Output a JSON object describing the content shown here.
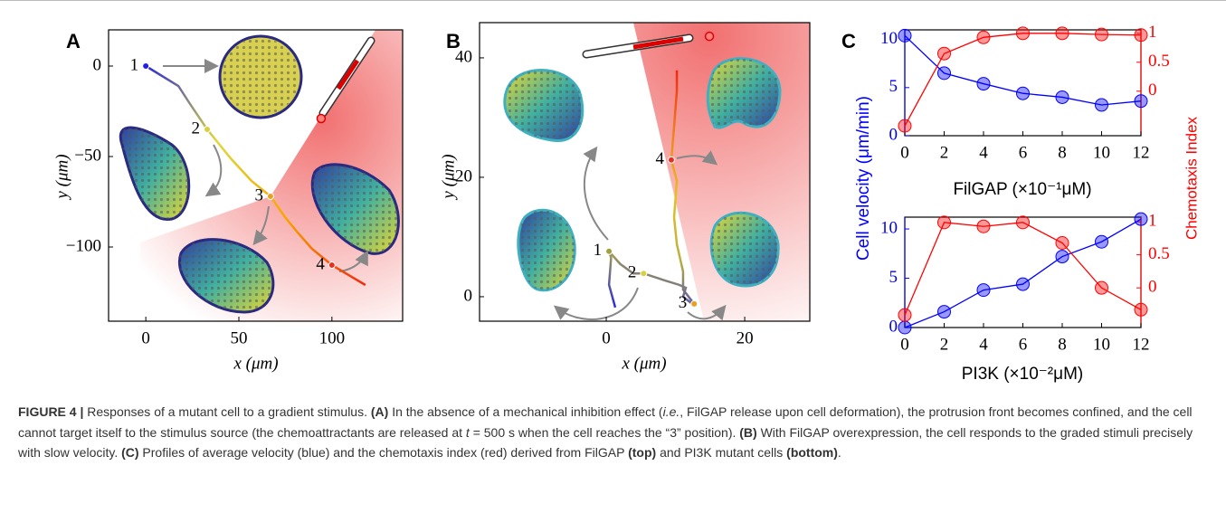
{
  "chart_data": [
    {
      "type": "trajectory",
      "label": "A",
      "xlabel": "x (μm)",
      "ylabel": "y (μm)",
      "xlim": [
        -20,
        138
      ],
      "ylim": [
        -141,
        20
      ],
      "xticks": [
        0,
        50,
        100
      ],
      "yticks": [
        0,
        {
          "value": -50,
          "label": "−50"
        },
        {
          "value": -100,
          "label": "−100"
        }
      ],
      "path": {
        "x": [
          0,
          17.5,
          23.8,
          33,
          45.6,
          56.8,
          67,
          74.8,
          82,
          89.3,
          100,
          118
        ],
        "y": [
          0,
          -11,
          -21,
          -35,
          -51,
          -63.5,
          -72,
          -83.5,
          -92.5,
          -101,
          -110,
          -121
        ],
        "colors": [
          "#2b2bd6",
          "#e0d83a",
          "#f8a400",
          "#ef2a10"
        ]
      },
      "markers": {
        "x": [
          0,
          33,
          67,
          100
        ],
        "y": [
          0,
          -35,
          -72,
          -110
        ],
        "labels": [
          "1",
          "2",
          "3",
          "4"
        ],
        "colors": [
          "#2020e0",
          "#d8d040",
          "#e8a020",
          "#e83020"
        ]
      },
      "source": {
        "x": 94.2,
        "y": -29
      }
    },
    {
      "type": "trajectory",
      "label": "B",
      "xlabel": "x (μm)",
      "ylabel": "y (μm)",
      "xlim": [
        -18.3,
        29.4
      ],
      "ylim": [
        -4.1,
        45.9
      ],
      "xticks": [
        0,
        20
      ],
      "yticks": [
        0,
        20,
        40
      ],
      "path": {
        "x": [
          1.3,
          0.4,
          0.7,
          0.4,
          2,
          3.9,
          5.4,
          8.5,
          10.5,
          11.5,
          11.1,
          12.2,
          12.7,
          11.1,
          11.1,
          10.2,
          9.8,
          10.2,
          9.4,
          9.8,
          10.2,
          10.2
        ],
        "y": [
          -1.8,
          2,
          6.5,
          7.6,
          5.5,
          3.9,
          3.9,
          2.7,
          2,
          1.5,
          0,
          -1,
          -1.2,
          1.2,
          4.2,
          8.8,
          13.3,
          19.4,
          22.9,
          28.5,
          34.5,
          37.9
        ],
        "colors": [
          "#2b2bd6",
          "#b8b040",
          "#e8c020",
          "#f08020",
          "#ef2a10"
        ]
      },
      "markers": {
        "x": [
          0.4,
          5.4,
          12.7,
          9.4
        ],
        "y": [
          7.6,
          3.9,
          -1.2,
          22.9
        ],
        "labels": [
          "1",
          "2",
          "3",
          "4"
        ],
        "colors": [
          "#a0a040",
          "#d8d040",
          "#e8a020",
          "#e83020"
        ]
      },
      "source": {
        "x": 14.9,
        "y": 43.6
      }
    },
    {
      "type": "line",
      "label": "C",
      "xlabel": "FilGAP (×10⁻¹μM)",
      "ylabel": "Cell velocity (μm/min)",
      "y2label": "Chemotaxis Index",
      "x": [
        0,
        2,
        4,
        6,
        8,
        10,
        12
      ],
      "xlim": [
        0,
        12
      ],
      "ylim": [
        0,
        11
      ],
      "y2lim": [
        -0.77,
        1.06
      ],
      "xticks": [
        0,
        2,
        4,
        6,
        8,
        10,
        12
      ],
      "yticks": [
        0,
        5,
        10
      ],
      "y2ticks": [
        0,
        0.5,
        1
      ],
      "series": [
        {
          "color": "#0000ff",
          "values": [
            10.4,
            6.5,
            5.4,
            4.4,
            4.0,
            3.2,
            3.6
          ]
        },
        {
          "color": "#ff0000",
          "axis": "y2",
          "values": [
            -0.6,
            0.65,
            0.93,
            1.0,
            1.0,
            0.98,
            0.97
          ]
        }
      ]
    },
    {
      "type": "line",
      "xlabel": "PI3K (×10⁻²μM)",
      "x": [
        0,
        2,
        4,
        6,
        8,
        10,
        12
      ],
      "xlim": [
        0,
        12
      ],
      "ylim": [
        0,
        11.2
      ],
      "y2lim": [
        -0.6,
        1.07
      ],
      "xticks": [
        0,
        2,
        4,
        6,
        8,
        10,
        12
      ],
      "yticks": [
        0,
        5,
        10
      ],
      "y2ticks": [
        0,
        0.5,
        1
      ],
      "series": [
        {
          "color": "#0000ff",
          "values": [
            0,
            1.6,
            3.8,
            4.4,
            7.2,
            8.7,
            11
          ]
        },
        {
          "color": "#ff0000",
          "axis": "y2",
          "values": [
            -0.41,
            0.99,
            0.93,
            0.99,
            0.68,
            0,
            -0.33
          ]
        }
      ]
    }
  ],
  "caption": [
    {
      "text": "FIGURE 4 |",
      "bold": true
    },
    {
      "text": " Responses of a mutant cell to a gradient stimulus. "
    },
    {
      "text": "(A)",
      "bold": true
    },
    {
      "text": " In the absence of a mechanical inhibition effect ("
    },
    {
      "text": "i.e.",
      "italic": true
    },
    {
      "text": ", FilGAP release upon cell deformation), the protrusion front becomes confined, and the cell cannot target itself to the stimulus source (the chemoattractants are released at "
    },
    {
      "text": "t",
      "italic": true
    },
    {
      "text": " = 500 s when the cell reaches the “3” position). "
    },
    {
      "text": "(B)",
      "bold": true
    },
    {
      "text": " With FilGAP overexpression, the cell responds to the graded stimuli precisely with slow velocity. "
    },
    {
      "text": "(C)",
      "bold": true
    },
    {
      "text": " Profiles of average velocity (blue) and the chemotaxis index (red) derived from FilGAP "
    },
    {
      "text": "(top)",
      "bold": true
    },
    {
      "text": " and PI3K mutant cells "
    },
    {
      "text": "(bottom)",
      "bold": true
    },
    {
      "text": "."
    }
  ]
}
